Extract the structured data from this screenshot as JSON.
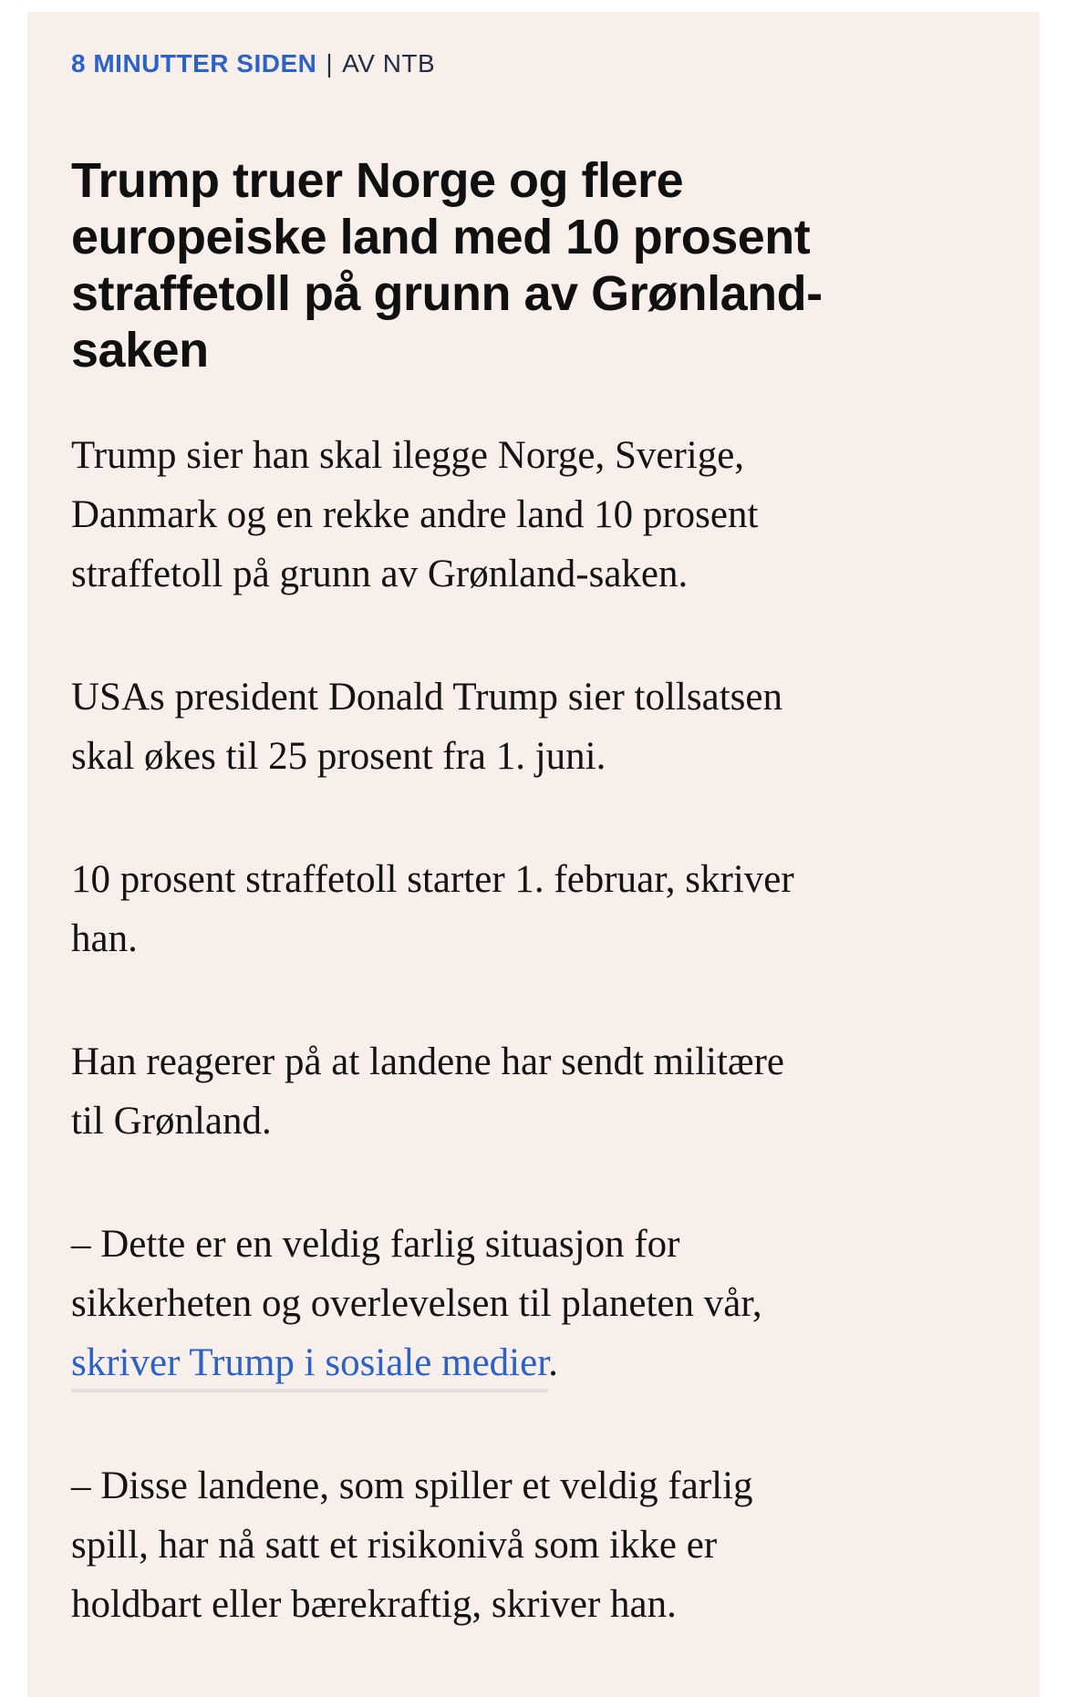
{
  "colors": {
    "page_background": "#ffffff",
    "panel_background": "#f8efeb",
    "timestamp_blue": "#2b62c8",
    "byline_dark": "#1f2c44",
    "headline_black": "#101010",
    "body_black": "#141414",
    "link_blue": "#2b62c8",
    "link_underline_gray": "#e3e0db"
  },
  "meta": {
    "timestamp": "8 MINUTTER SIDEN",
    "separator": "|",
    "byline": "AV NTB"
  },
  "article": {
    "title_lines": [
      "Trump truer Norge og flere",
      "europeiske land med 10 prosent",
      "straffetoll på grunn av Grønland-",
      "saken"
    ],
    "paragraphs": [
      {
        "lines": [
          "Trump sier han skal ilegge Norge, Sverige,",
          "Danmark og en rekke andre land 10 prosent",
          "straffetoll på grunn av Grønland-saken."
        ]
      },
      {
        "lines": [
          "USAs president Donald Trump sier tollsatsen",
          "skal økes til 25 prosent fra 1. juni."
        ]
      },
      {
        "lines": [
          "10 prosent straffetoll starter 1. februar, skriver",
          "han."
        ]
      },
      {
        "lines": [
          "Han reagerer på at landene har sendt militære",
          "til Grønland."
        ]
      },
      {
        "lines": [
          "– Dette er en veldig farlig situasjon for",
          "sikkerheten og overlevelsen til planeten vår,"
        ]
      },
      {
        "lines": [
          "– Disse landene, som spiller et veldig farlig",
          "spill, har nå satt et risikonivå som ikke er",
          "holdbart eller bærekraftig, skriver han."
        ]
      }
    ],
    "link": {
      "text": "skriver Trump i sosiale medier",
      "suffix": "."
    }
  }
}
